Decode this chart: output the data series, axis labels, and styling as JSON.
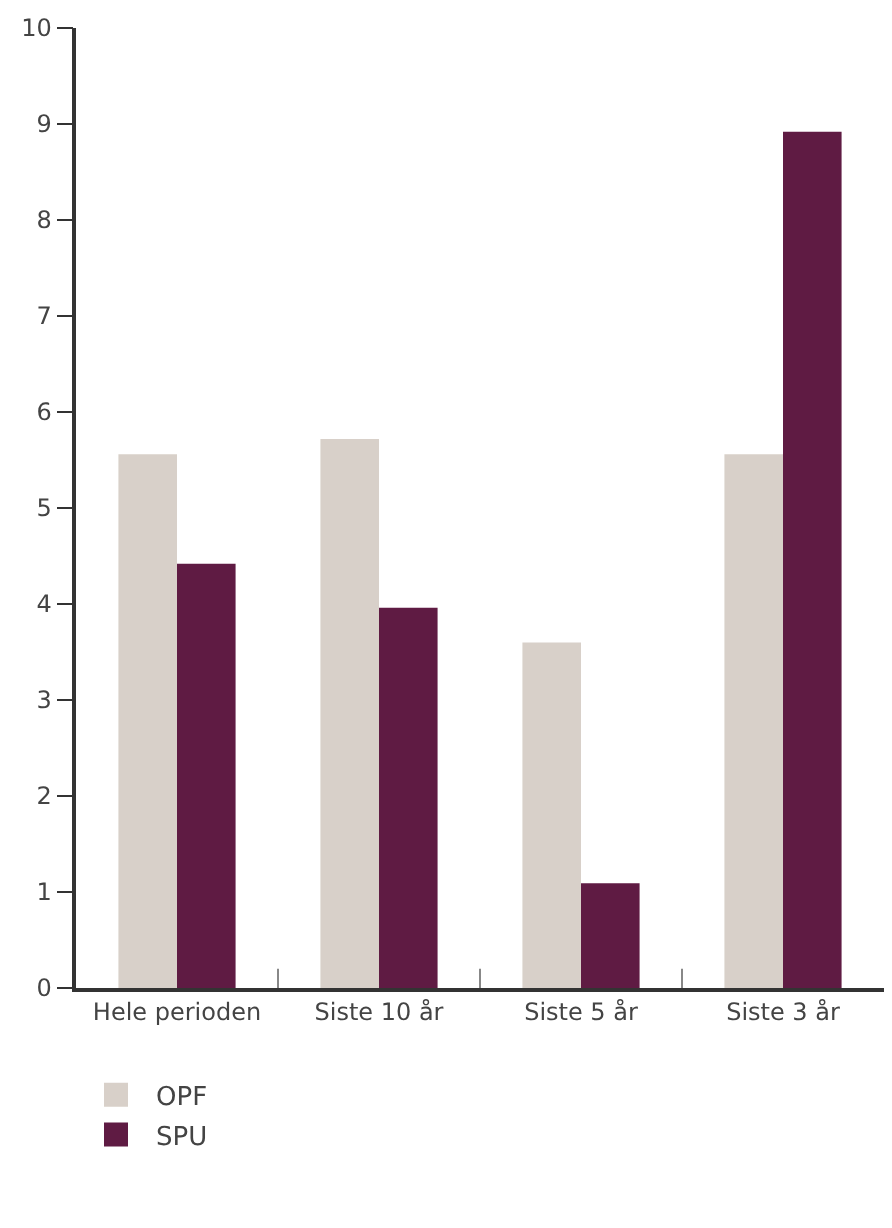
{
  "chart_data": {
    "type": "bar",
    "categories": [
      "Hele perioden",
      "Siste 10 år",
      "Siste 5 år",
      "Siste 3 år"
    ],
    "series": [
      {
        "name": "OPF",
        "color": "#d8d0c9",
        "values": [
          5.56,
          5.72,
          3.6,
          5.56
        ]
      },
      {
        "name": "SPU",
        "color": "#5f1b43",
        "values": [
          4.42,
          3.96,
          1.09,
          8.92
        ]
      }
    ],
    "ylim": [
      0,
      10
    ],
    "yticks": [
      0,
      1,
      2,
      3,
      4,
      5,
      6,
      7,
      8,
      9,
      10
    ],
    "legend": "bottom left"
  }
}
